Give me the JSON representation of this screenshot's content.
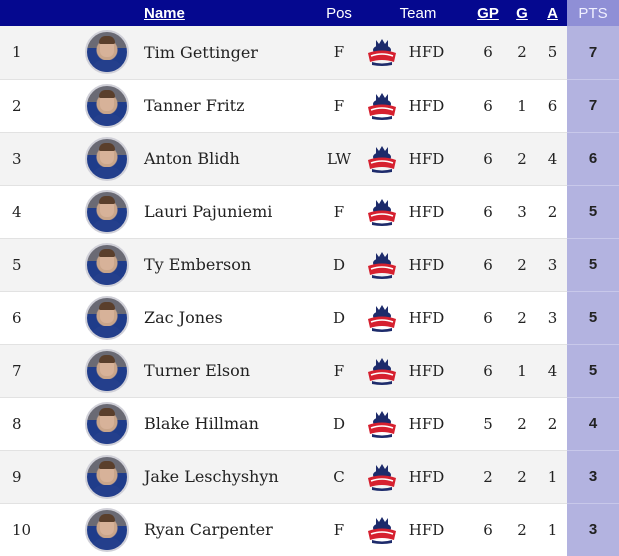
{
  "header": {
    "name": "Name",
    "pos": "Pos",
    "team": "Team",
    "gp": "GP",
    "g": "G",
    "a": "A",
    "pts": "PTS"
  },
  "colors": {
    "header_bg": "#05088f",
    "pts_header_bg": "#8f8fd6",
    "pts_cell_bg": "#b3b3e0"
  },
  "team_logo_icon": "hartford-wolf-pack-logo-icon",
  "rows": [
    {
      "rank": "1",
      "name": "Tim Gettinger",
      "pos": "F",
      "team": "HFD",
      "gp": "6",
      "g": "2",
      "a": "5",
      "pts": "7"
    },
    {
      "rank": "2",
      "name": "Tanner Fritz",
      "pos": "F",
      "team": "HFD",
      "gp": "6",
      "g": "1",
      "a": "6",
      "pts": "7"
    },
    {
      "rank": "3",
      "name": "Anton Blidh",
      "pos": "LW",
      "team": "HFD",
      "gp": "6",
      "g": "2",
      "a": "4",
      "pts": "6"
    },
    {
      "rank": "4",
      "name": "Lauri Pajuniemi",
      "pos": "F",
      "team": "HFD",
      "gp": "6",
      "g": "3",
      "a": "2",
      "pts": "5"
    },
    {
      "rank": "5",
      "name": "Ty Emberson",
      "pos": "D",
      "team": "HFD",
      "gp": "6",
      "g": "2",
      "a": "3",
      "pts": "5"
    },
    {
      "rank": "6",
      "name": "Zac Jones",
      "pos": "D",
      "team": "HFD",
      "gp": "6",
      "g": "2",
      "a": "3",
      "pts": "5"
    },
    {
      "rank": "7",
      "name": "Turner Elson",
      "pos": "F",
      "team": "HFD",
      "gp": "6",
      "g": "1",
      "a": "4",
      "pts": "5"
    },
    {
      "rank": "8",
      "name": "Blake Hillman",
      "pos": "D",
      "team": "HFD",
      "gp": "5",
      "g": "2",
      "a": "2",
      "pts": "4"
    },
    {
      "rank": "9",
      "name": "Jake Leschyshyn",
      "pos": "C",
      "team": "HFD",
      "gp": "2",
      "g": "2",
      "a": "1",
      "pts": "3"
    },
    {
      "rank": "10",
      "name": "Ryan Carpenter",
      "pos": "F",
      "team": "HFD",
      "gp": "6",
      "g": "2",
      "a": "1",
      "pts": "3"
    }
  ]
}
